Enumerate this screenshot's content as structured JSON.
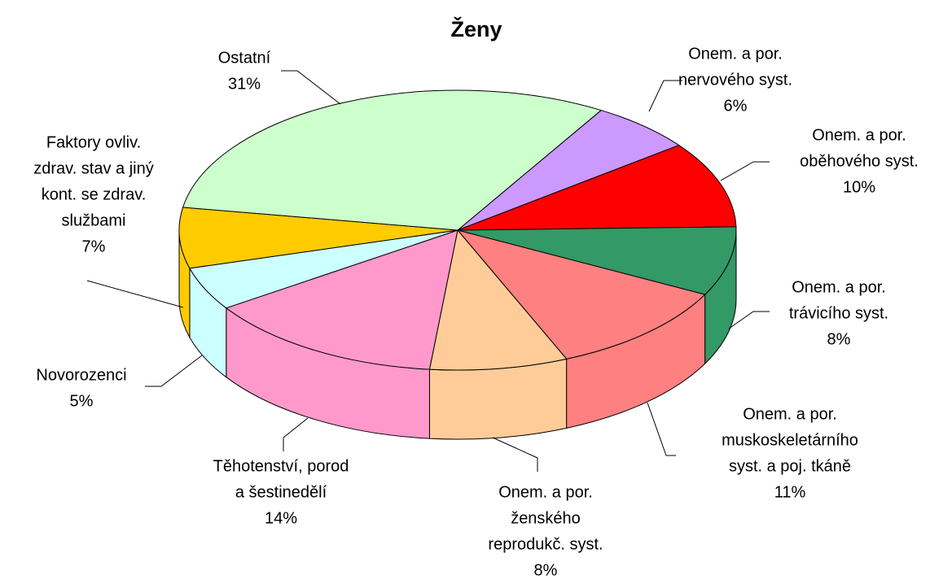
{
  "chart_data": {
    "type": "pie3d",
    "title": "Ženy",
    "categories": [
      [
        "Onem. a por.",
        "nervového syst."
      ],
      [
        "Onem. a por.",
        "oběhového syst."
      ],
      [
        "Onem. a por.",
        "trávicího syst."
      ],
      [
        "Onem. a por.",
        "muskoskeletárního",
        "syst. a poj. tkáně"
      ],
      [
        "Onem. a por.",
        "ženského",
        "reprodukč. syst."
      ],
      [
        "Těhotenství, porod",
        "a šestinedělí"
      ],
      [
        "Novorozenci"
      ],
      [
        "Faktory ovliv.",
        "zdrav. stav a jiný",
        "kont. se zdrav.",
        "službami"
      ],
      [
        "Ostatní"
      ]
    ],
    "values": [
      6,
      10,
      8,
      11,
      8,
      14,
      5,
      7,
      31
    ],
    "value_labels": [
      "6%",
      "10%",
      "8%",
      "11%",
      "8%",
      "14%",
      "5%",
      "7%",
      "31%"
    ],
    "colors": [
      "#cc99ff",
      "#ff0000",
      "#339966",
      "#ff8080",
      "#ffcc99",
      "#ff99cc",
      "#ccffff",
      "#ffcc00",
      "#ccffcc"
    ]
  }
}
